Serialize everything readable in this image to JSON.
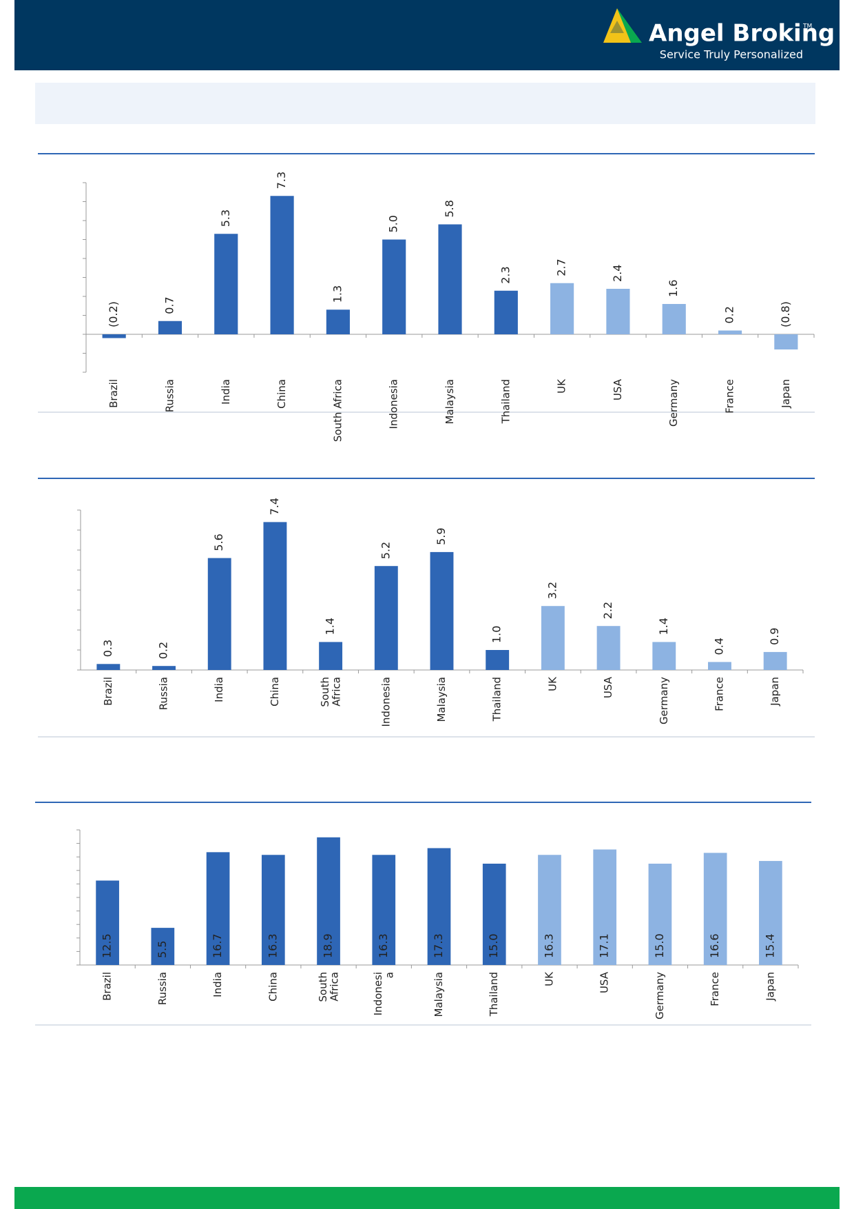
{
  "header": {
    "brand": "Angel Broking",
    "trademark": "TM",
    "tagline": "Service Truly Personalized"
  },
  "chart_data": [
    {
      "type": "bar",
      "categories": [
        "Brazil",
        "Russia",
        "India",
        "China",
        "South Africa",
        "Indonesia",
        "Malaysia",
        "Thailand",
        "UK",
        "USA",
        "Germany",
        "France",
        "Japan"
      ],
      "values": [
        -0.2,
        0.7,
        5.3,
        7.3,
        1.3,
        5.0,
        5.8,
        2.3,
        2.7,
        2.4,
        1.6,
        0.2,
        -0.8
      ],
      "value_labels": [
        "(0.2)",
        "0.7",
        "5.3",
        "7.3",
        "1.3",
        "5.0",
        "5.8",
        "2.3",
        "2.7",
        "2.4",
        "1.6",
        "0.2",
        "(0.8)"
      ],
      "colors": [
        "#2e66b5",
        "#2e66b5",
        "#2e66b5",
        "#2e66b5",
        "#2e66b5",
        "#2e66b5",
        "#2e66b5",
        "#2e66b5",
        "#8db3e2",
        "#8db3e2",
        "#8db3e2",
        "#8db3e2",
        "#8db3e2"
      ],
      "ylim": [
        -2,
        8
      ],
      "yticks": [
        -2,
        -1,
        0,
        1,
        2,
        3,
        4,
        5,
        6,
        7,
        8
      ],
      "grid": false,
      "value_label_position": "outside"
    },
    {
      "type": "bar",
      "categories": [
        "Brazil",
        "Russia",
        "India",
        "China",
        "South\nAfrica",
        "Indonesia",
        "Malaysia",
        "Thailand",
        "UK",
        "USA",
        "Germany",
        "France",
        "Japan"
      ],
      "values": [
        0.3,
        0.2,
        5.6,
        7.4,
        1.4,
        5.2,
        5.9,
        1.0,
        3.2,
        2.2,
        1.4,
        0.4,
        0.9
      ],
      "value_labels": [
        "0.3",
        "0.2",
        "5.6",
        "7.4",
        "1.4",
        "5.2",
        "5.9",
        "1.0",
        "3.2",
        "2.2",
        "1.4",
        "0.4",
        "0.9"
      ],
      "colors": [
        "#2e66b5",
        "#2e66b5",
        "#2e66b5",
        "#2e66b5",
        "#2e66b5",
        "#2e66b5",
        "#2e66b5",
        "#2e66b5",
        "#8db3e2",
        "#8db3e2",
        "#8db3e2",
        "#8db3e2",
        "#8db3e2"
      ],
      "ylim": [
        0,
        8
      ],
      "yticks": [
        0,
        1,
        2,
        3,
        4,
        5,
        6,
        7,
        8
      ],
      "grid": false,
      "value_label_position": "outside"
    },
    {
      "type": "bar",
      "categories": [
        "Brazil",
        "Russia",
        "India",
        "China",
        "South\nAfrica",
        "Indonesi\na",
        "Malaysia",
        "Thailand",
        "UK",
        "USA",
        "Germany",
        "France",
        "Japan"
      ],
      "values": [
        12.5,
        5.5,
        16.7,
        16.3,
        18.9,
        16.3,
        17.3,
        15.0,
        16.3,
        17.1,
        15.0,
        16.6,
        15.4
      ],
      "value_labels": [
        "12.5",
        "5.5",
        "16.7",
        "16.3",
        "18.9",
        "16.3",
        "17.3",
        "15.0",
        "16.3",
        "17.1",
        "15.0",
        "16.6",
        "15.4"
      ],
      "colors": [
        "#2e66b5",
        "#2e66b5",
        "#2e66b5",
        "#2e66b5",
        "#2e66b5",
        "#2e66b5",
        "#2e66b5",
        "#2e66b5",
        "#8db3e2",
        "#8db3e2",
        "#8db3e2",
        "#8db3e2",
        "#8db3e2"
      ],
      "ylim": [
        0,
        20
      ],
      "yticks": [
        0,
        2,
        4,
        6,
        8,
        10,
        12,
        14,
        16,
        18,
        20
      ],
      "grid": false,
      "value_label_position": "inside"
    }
  ]
}
